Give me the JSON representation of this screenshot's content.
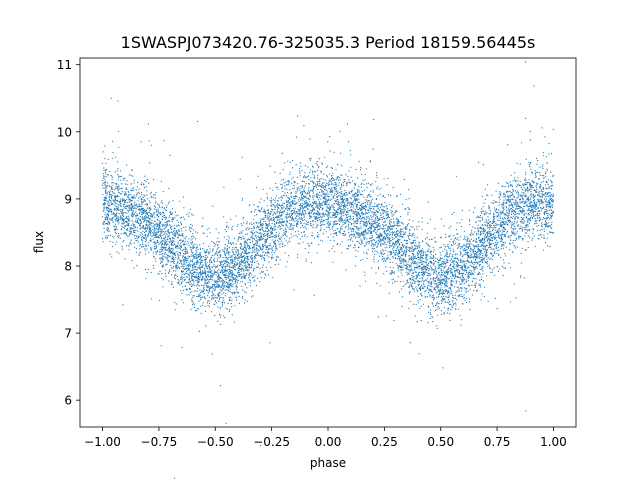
{
  "chart_data": {
    "type": "scatter",
    "title": "1SWASPJ073420.76-325035.3 Period 18159.56445s",
    "xlabel": "phase",
    "ylabel": "flux",
    "xlim": [
      -1.1,
      1.1
    ],
    "ylim": [
      5.6,
      11.1
    ],
    "xticks": [
      -1.0,
      -0.75,
      -0.5,
      -0.25,
      0.0,
      0.25,
      0.5,
      0.75,
      1.0
    ],
    "xtick_labels": [
      "−1.00",
      "−0.75",
      "−0.50",
      "−0.25",
      "0.00",
      "0.25",
      "0.50",
      "0.75",
      "1.00"
    ],
    "yticks": [
      6,
      7,
      8,
      9,
      10,
      11
    ],
    "ytick_labels": [
      "6",
      "7",
      "8",
      "9",
      "10",
      "11"
    ],
    "grid": false,
    "series": [
      {
        "color": "#1f77b4",
        "marker_size_px": 0.6,
        "trend": {
          "phase": [
            -1.0,
            -0.9,
            -0.8,
            -0.7,
            -0.6,
            -0.5,
            -0.4,
            -0.3,
            -0.2,
            -0.1,
            0.0,
            0.1,
            0.2,
            0.3,
            0.4,
            0.5,
            0.6,
            0.7,
            0.8,
            0.9,
            1.0
          ],
          "flux": [
            8.95,
            8.85,
            8.65,
            8.35,
            8.0,
            7.8,
            8.0,
            8.4,
            8.75,
            8.95,
            8.95,
            8.85,
            8.65,
            8.35,
            8.0,
            7.8,
            8.0,
            8.4,
            8.75,
            8.95,
            8.95
          ]
        },
        "scatter_sigma": 0.28,
        "n_points": 8500
      }
    ]
  }
}
